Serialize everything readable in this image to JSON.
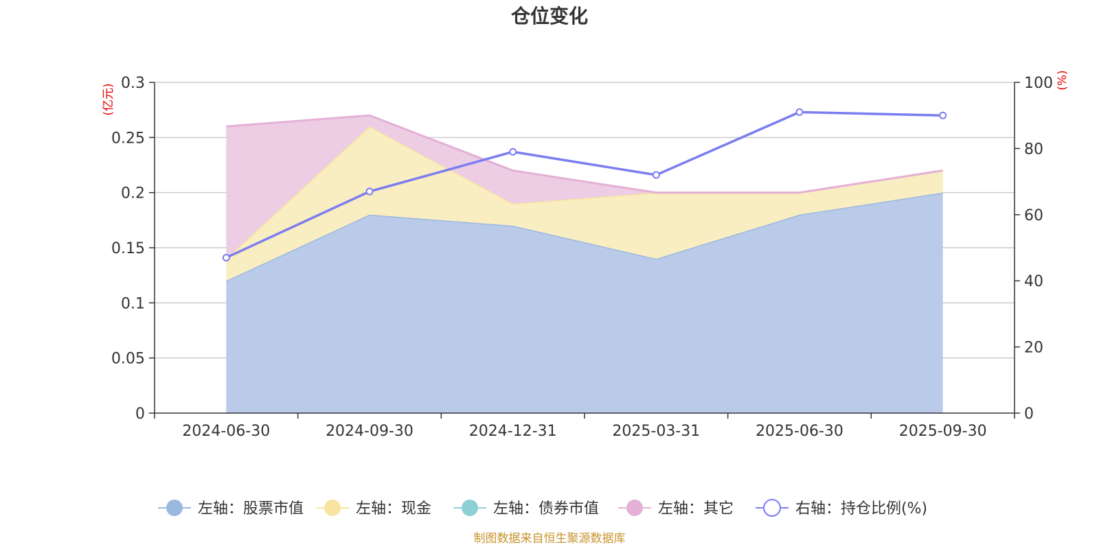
{
  "chart_data": {
    "type": "area",
    "title": "仓位变化",
    "categories": [
      "2024-06-30",
      "2024-09-30",
      "2024-12-31",
      "2025-03-31",
      "2025-06-30",
      "2025-09-30"
    ],
    "left_axis": {
      "unit": "(亿元)",
      "min": 0,
      "max": 0.3,
      "ticks": [
        "0",
        "0.05",
        "0.1",
        "0.15",
        "0.2",
        "0.25",
        "0.3"
      ]
    },
    "right_axis": {
      "unit": "(%)",
      "min": 0,
      "max": 100,
      "ticks": [
        "0",
        "20",
        "40",
        "60",
        "80",
        "100"
      ]
    },
    "series": [
      {
        "name": "左轴：股票市值",
        "axis": "left",
        "stack": true,
        "color": "#9bb8e0",
        "fill": "#b9cbe9",
        "values": [
          0.12,
          0.18,
          0.17,
          0.14,
          0.18,
          0.2
        ]
      },
      {
        "name": "左轴：现金",
        "axis": "left",
        "stack": true,
        "color": "#f8e4a0",
        "fill": "#f9edc2",
        "values": [
          0.02,
          0.08,
          0.02,
          0.06,
          0.02,
          0.02
        ]
      },
      {
        "name": "左轴：债券市值",
        "axis": "left",
        "stack": true,
        "color": "#8ecfd4",
        "fill": "#bfe5e8",
        "values": [
          0,
          0,
          0,
          0,
          0,
          0
        ]
      },
      {
        "name": "左轴：其它",
        "axis": "left",
        "stack": true,
        "color": "#e4b0d6",
        "fill": "#edcde4",
        "values": [
          0.12,
          0.01,
          0.03,
          0.0,
          0.0,
          0.0
        ]
      },
      {
        "name": "右轴：持仓比例(%)",
        "axis": "right",
        "stack": false,
        "color": "#7b7df0",
        "fill": "none",
        "values": [
          47,
          67,
          79,
          72,
          91,
          90
        ]
      }
    ],
    "legend_position": "bottom"
  },
  "source_text": "制图数据来自恒生聚源数据库"
}
